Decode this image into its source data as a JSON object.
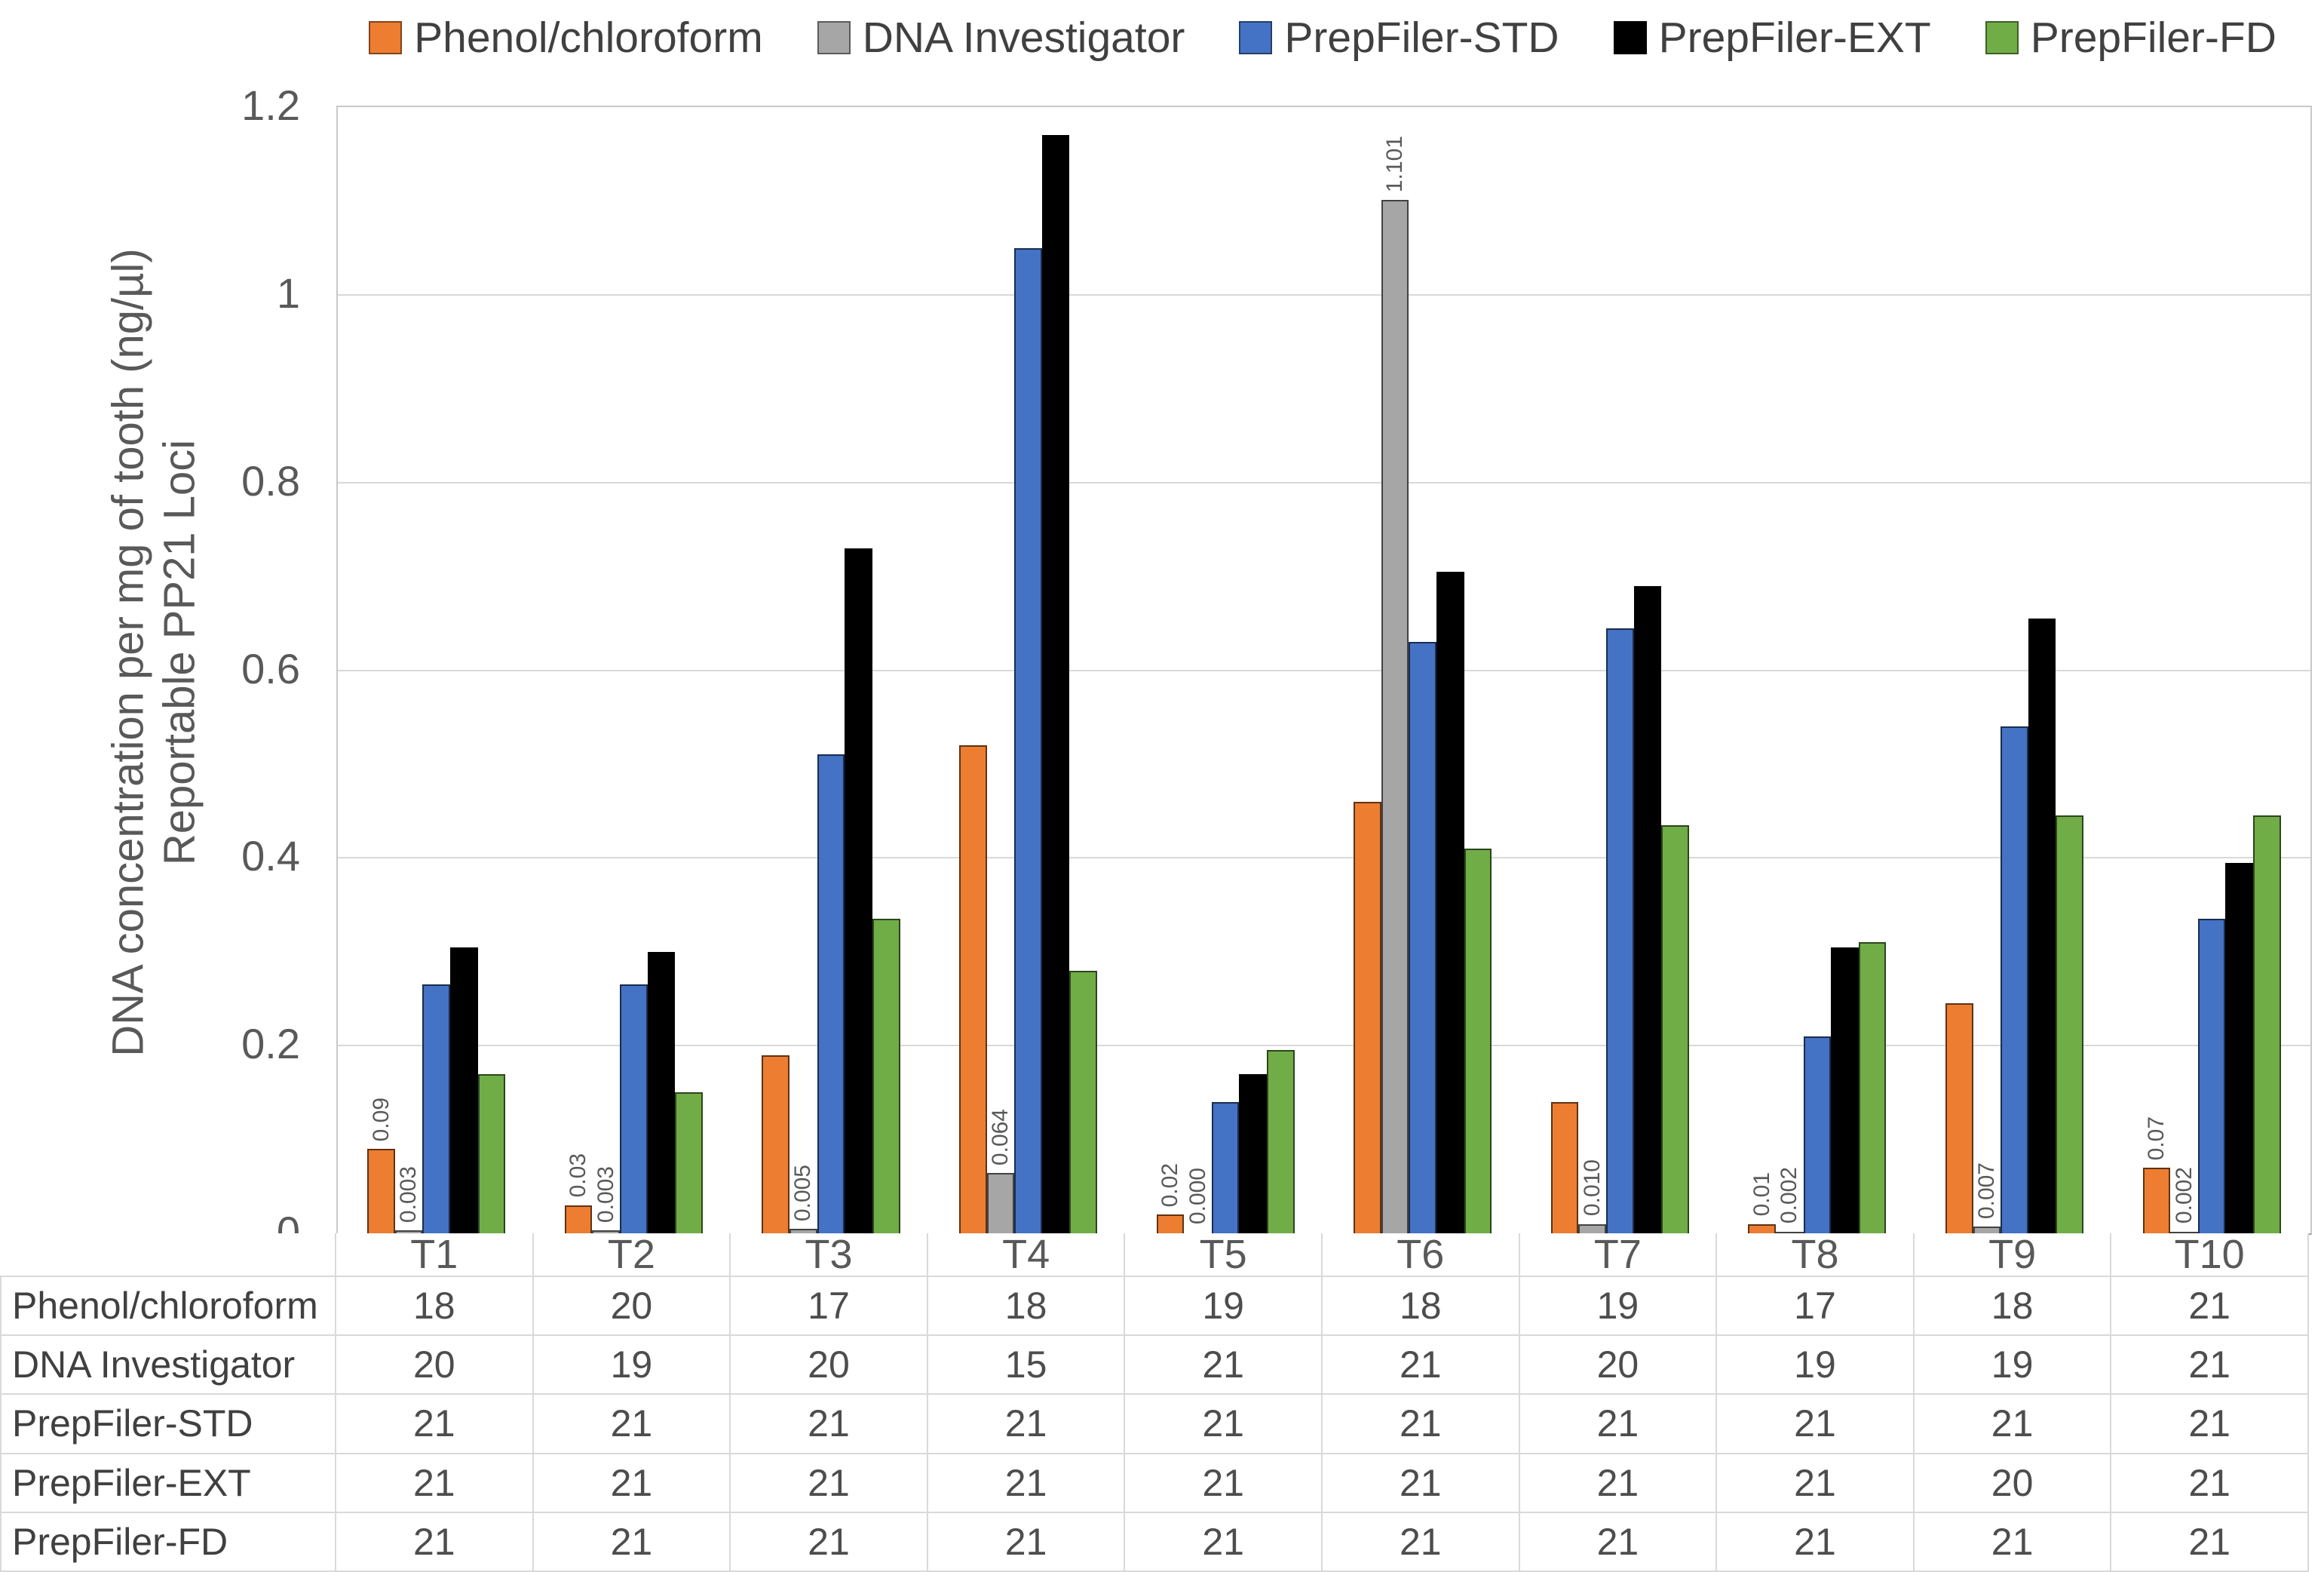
{
  "chart_data": {
    "type": "bar",
    "title": "",
    "ylabel_line1": "DNA concentration per mg of tooth (ng/µl)",
    "ylabel_line2": "Reportable PP21 Loci",
    "categories": [
      "T1",
      "T2",
      "T3",
      "T4",
      "T5",
      "T6",
      "T7",
      "T8",
      "T9",
      "T10"
    ],
    "y_ticks": [
      "0",
      "0.2",
      "0.4",
      "0.6",
      "0.8",
      "1",
      "1.2"
    ],
    "ylim": [
      0,
      1.2
    ],
    "grid": "horizontal",
    "legend_position": "top",
    "series": [
      {
        "name": "Phenol/chloroform",
        "color": "#ED7D31",
        "values": [
          0.09,
          0.03,
          0.19,
          0.52,
          0.02,
          0.46,
          0.14,
          0.01,
          0.245,
          0.07
        ],
        "labels": [
          "0.09",
          "0.03",
          null,
          null,
          "0.02",
          null,
          null,
          "0.01",
          null,
          "0.07"
        ]
      },
      {
        "name": "DNA Investigator",
        "color": "#A6A6A6",
        "values": [
          0.003,
          0.003,
          0.005,
          0.064,
          0.0,
          1.101,
          0.01,
          0.002,
          0.007,
          0.002
        ],
        "labels": [
          "0.003",
          "0.003",
          "0.005",
          "0.064",
          "0.000",
          "1.101",
          "0.010",
          "0.002",
          "0.007",
          "0.002"
        ]
      },
      {
        "name": "PrepFiler-STD",
        "color": "#4472C4",
        "values": [
          0.265,
          0.265,
          0.51,
          1.05,
          0.14,
          0.63,
          0.645,
          0.21,
          0.54,
          0.335
        ],
        "labels": [
          null,
          null,
          null,
          null,
          null,
          null,
          null,
          null,
          null,
          null
        ]
      },
      {
        "name": "PrepFiler-EXT",
        "color": "#000000",
        "values": [
          0.305,
          0.3,
          0.73,
          1.17,
          0.17,
          0.705,
          0.69,
          0.305,
          0.655,
          0.395
        ],
        "labels": [
          null,
          null,
          null,
          null,
          null,
          null,
          null,
          null,
          null,
          null
        ]
      },
      {
        "name": "PrepFiler-FD",
        "color": "#70AD47",
        "values": [
          0.17,
          0.15,
          0.335,
          0.28,
          0.195,
          0.41,
          0.435,
          0.31,
          0.445,
          0.445
        ],
        "labels": [
          null,
          null,
          null,
          null,
          null,
          null,
          null,
          null,
          null,
          null
        ]
      }
    ],
    "table": {
      "row_labels": [
        "Phenol/chloroform",
        "DNA Investigator",
        "PrepFiler-STD",
        "PrepFiler-EXT",
        "PrepFiler-FD"
      ],
      "rows": [
        [
          18,
          20,
          17,
          18,
          19,
          18,
          19,
          17,
          18,
          21
        ],
        [
          20,
          19,
          20,
          15,
          21,
          21,
          20,
          19,
          19,
          21
        ],
        [
          21,
          21,
          21,
          21,
          21,
          21,
          21,
          21,
          21,
          21
        ],
        [
          21,
          21,
          21,
          21,
          21,
          21,
          21,
          21,
          20,
          21
        ],
        [
          21,
          21,
          21,
          21,
          21,
          21,
          21,
          21,
          21,
          21
        ]
      ]
    }
  },
  "colors": {
    "gridline": "#D9D9D9",
    "plot_border": "#C9C9C9",
    "axis_line": "#9A9A9A",
    "tick_text": "#595959",
    "data_label_text": "#595959",
    "legend_text": "#404040",
    "table_text": "#4D4D4D"
  }
}
